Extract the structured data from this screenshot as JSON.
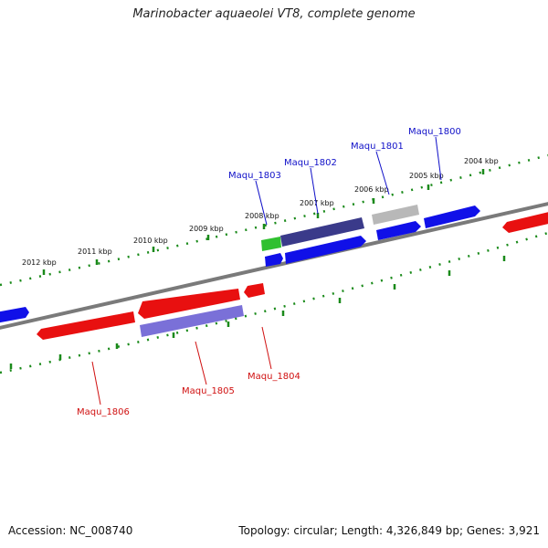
{
  "title": "Marinobacter aquaeolei VT8, complete genome",
  "footer": {
    "accession": "Accession: NC_008740",
    "topology": "Topology: circular; Length: 4,326,849 bp; Genes: 3,921"
  },
  "scale_labels": [
    "2012 kbp",
    "2011 kbp",
    "2010 kbp",
    "2009 kbp",
    "2008 kbp",
    "2007 kbp",
    "2006 kbp",
    "2005 kbp",
    "2004 kbp"
  ],
  "gene_labels": [
    "Maqu_1803",
    "Maqu_1802",
    "Maqu_1801",
    "Maqu_1800",
    "Maqu_1806",
    "Maqu_1805",
    "Maqu_1804"
  ],
  "colors": {
    "forward": "#1010e8",
    "reverse": "#e81010",
    "dark_purple": "#3a3a8a",
    "light_purple": "#7a70d8",
    "green": "#30c030",
    "gray": "#b8b8b8",
    "backbone": "#808080",
    "scale": "#1a8a1a"
  }
}
